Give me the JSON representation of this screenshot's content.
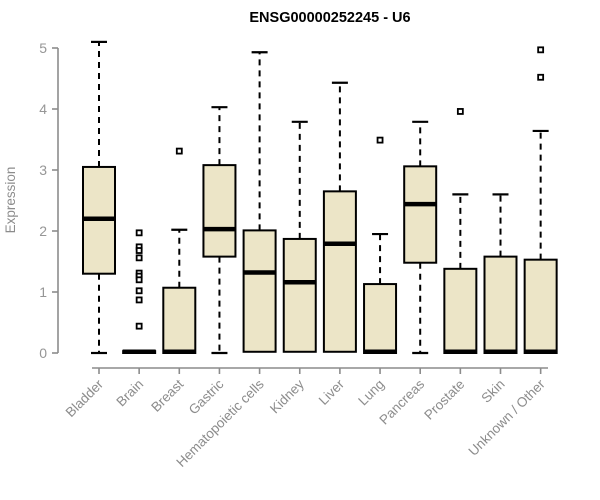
{
  "colors": {
    "box_fill": "#ece5c7",
    "box_border": "#000000",
    "median": "#000000",
    "whisker": "#000000",
    "outlier_fill": "#ffffff",
    "outlier_border": "#000000",
    "axis": "#8c8c8c",
    "tick_text": "#969696",
    "background": "#ffffff"
  },
  "chart_data": {
    "type": "boxplot",
    "title": "ENSG00000252245 - U6",
    "ylabel": "Expression",
    "xlabel": "",
    "ylim": [
      0,
      5.2
    ],
    "yticks": [
      0,
      1,
      2,
      3,
      4,
      5
    ],
    "grid": false,
    "legend": "none",
    "categories": [
      "Bladder",
      "Brain",
      "Breast",
      "Gastric",
      "Hematopoietic cells",
      "Kidney",
      "Liver",
      "Lung",
      "Pancreas",
      "Prostate",
      "Skin",
      "Unknown / Other"
    ],
    "series": [
      {
        "category": "Bladder",
        "whisker_low": 0,
        "q1": 1.3,
        "median": 2.2,
        "q3": 3.05,
        "whisker_high": 5.1,
        "outliers": []
      },
      {
        "category": "Brain",
        "whisker_low": 0,
        "q1": 0.0,
        "median": 0.02,
        "q3": 0.03,
        "whisker_high": 0.03,
        "outliers": [
          1.97,
          1.74,
          1.68,
          1.56,
          1.31,
          1.26,
          1.2,
          1.02,
          0.87,
          0.44
        ]
      },
      {
        "category": "Breast",
        "whisker_low": 0,
        "q1": 0.0,
        "median": 0.02,
        "q3": 1.07,
        "whisker_high": 2.02,
        "outliers": [
          3.31
        ]
      },
      {
        "category": "Gastric",
        "whisker_low": 0,
        "q1": 1.58,
        "median": 2.03,
        "q3": 3.08,
        "whisker_high": 4.03,
        "outliers": []
      },
      {
        "category": "Hematopoietic cells",
        "whisker_low": 0,
        "q1": 0.02,
        "median": 1.32,
        "q3": 2.01,
        "whisker_high": 4.93,
        "outliers": []
      },
      {
        "category": "Kidney",
        "whisker_low": 0,
        "q1": 0.02,
        "median": 1.16,
        "q3": 1.87,
        "whisker_high": 3.79,
        "outliers": []
      },
      {
        "category": "Liver",
        "whisker_low": 0,
        "q1": 0.02,
        "median": 1.79,
        "q3": 2.65,
        "whisker_high": 4.43,
        "outliers": []
      },
      {
        "category": "Lung",
        "whisker_low": 0,
        "q1": 0.0,
        "median": 0.02,
        "q3": 1.13,
        "whisker_high": 1.95,
        "outliers": [
          3.49
        ]
      },
      {
        "category": "Pancreas",
        "whisker_low": 0,
        "q1": 1.48,
        "median": 2.44,
        "q3": 3.06,
        "whisker_high": 3.79,
        "outliers": []
      },
      {
        "category": "Prostate",
        "whisker_low": 0,
        "q1": 0.0,
        "median": 0.02,
        "q3": 1.38,
        "whisker_high": 2.6,
        "outliers": [
          3.96
        ]
      },
      {
        "category": "Skin",
        "whisker_low": 0,
        "q1": 0.0,
        "median": 0.02,
        "q3": 1.58,
        "whisker_high": 2.6,
        "outliers": []
      },
      {
        "category": "Unknown / Other",
        "whisker_low": 0,
        "q1": 0.0,
        "median": 0.02,
        "q3": 1.53,
        "whisker_high": 3.64,
        "outliers": [
          4.52,
          4.97
        ]
      }
    ]
  }
}
